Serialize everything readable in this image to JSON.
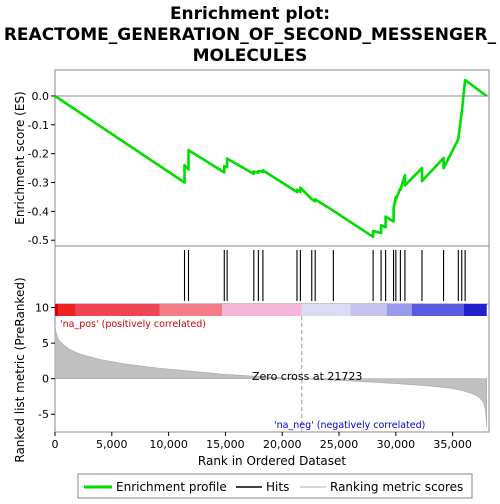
{
  "chart_data": {
    "type": "line",
    "title_lines": [
      "Enrichment plot:",
      "REACTOME_GENERATION_OF_SECOND_MESSENGER_",
      "MOLECULES"
    ],
    "x_axis": {
      "label": "Rank in Ordered Dataset",
      "range": [
        0,
        38200
      ],
      "ticks": [
        0,
        5000,
        10000,
        15000,
        20000,
        25000,
        30000,
        35000
      ],
      "tick_labels": [
        "0",
        "5,000",
        "10,000",
        "15,000",
        "20,000",
        "25,000",
        "30,000",
        "35,000"
      ]
    },
    "es_panel": {
      "ylabel": "Enrichment score (ES)",
      "ylim": [
        -0.52,
        0.09
      ],
      "ticks": [
        0.0,
        -0.1,
        -0.2,
        -0.3,
        -0.4,
        -0.5
      ],
      "tick_labels": [
        "0.0",
        "-0.1",
        "-0.2",
        "-0.3",
        "-0.4",
        "-0.5"
      ],
      "series": [
        {
          "name": "Enrichment profile",
          "color": "#00dd00",
          "x": [
            0,
            11400,
            11400,
            11750,
            11750,
            14900,
            14900,
            15150,
            15150,
            17500,
            17500,
            17900,
            17900,
            18300,
            18300,
            21300,
            21300,
            21600,
            21600,
            22600,
            22600,
            22900,
            22900,
            24500,
            24500,
            28000,
            28000,
            28700,
            28700,
            29100,
            29100,
            29800,
            29800,
            30000,
            30000,
            30400,
            30400,
            30800,
            30800,
            32300,
            32300,
            34200,
            34200,
            35500,
            35500,
            35800,
            35800,
            36100,
            36100,
            38000
          ],
          "y": [
            0.0,
            -0.3,
            -0.24,
            -0.255,
            -0.188,
            -0.265,
            -0.243,
            -0.247,
            -0.217,
            -0.27,
            -0.262,
            -0.266,
            -0.26,
            -0.263,
            -0.258,
            -0.333,
            -0.325,
            -0.333,
            -0.318,
            -0.358,
            -0.358,
            -0.365,
            -0.358,
            -0.398,
            -0.398,
            -0.488,
            -0.468,
            -0.475,
            -0.448,
            -0.455,
            -0.418,
            -0.435,
            -0.39,
            -0.35,
            -0.36,
            -0.32,
            -0.325,
            -0.275,
            -0.31,
            -0.25,
            -0.295,
            -0.215,
            -0.25,
            -0.15,
            -0.15,
            -0.055,
            -0.06,
            0.055,
            0.055,
            0.0
          ]
        }
      ]
    },
    "hits": {
      "name": "Hits",
      "x": [
        11400,
        11750,
        14900,
        15150,
        17500,
        17900,
        18300,
        21300,
        21600,
        22600,
        22900,
        24500,
        28000,
        28700,
        29100,
        29800,
        30000,
        30400,
        30800,
        32300,
        34200,
        35500,
        35800,
        36100
      ]
    },
    "rank_metric_panel": {
      "ylabel": "Ranked list metric (PreRanked)",
      "ylim": [
        -7.5,
        10.5
      ],
      "ticks": [
        10,
        5,
        0,
        -5
      ],
      "tick_labels": [
        "10",
        "5",
        "0",
        "-5"
      ],
      "series_name": "Ranking metric scores",
      "x": [
        0,
        100,
        300,
        700,
        1200,
        2000,
        3000,
        4000,
        5000,
        6000,
        7000,
        8000,
        9000,
        10000,
        11000,
        12000,
        13000,
        14000,
        15000,
        16000,
        17000,
        18000,
        19000,
        20000,
        21000,
        21723,
        23000,
        24000,
        25000,
        26000,
        27000,
        28000,
        29000,
        30000,
        31000,
        32000,
        33000,
        34000,
        35000,
        35500,
        36000,
        36500,
        37000,
        37400,
        37700,
        37900,
        38000
      ],
      "y": [
        7.5,
        6.5,
        5.5,
        4.8,
        4.2,
        3.6,
        3.1,
        2.7,
        2.4,
        2.1,
        1.9,
        1.7,
        1.5,
        1.35,
        1.2,
        1.05,
        0.9,
        0.75,
        0.6,
        0.5,
        0.4,
        0.3,
        0.2,
        0.12,
        0.05,
        0.0,
        -0.1,
        -0.18,
        -0.25,
        -0.33,
        -0.42,
        -0.5,
        -0.6,
        -0.7,
        -0.8,
        -0.92,
        -1.05,
        -1.2,
        -1.4,
        -1.55,
        -1.75,
        -2.0,
        -2.3,
        -2.7,
        -3.3,
        -4.5,
        -6.8
      ]
    },
    "zero_cross": {
      "x": 21723,
      "label": "Zero cross at 21723"
    },
    "annotations": {
      "positive": "'na_pos' (positively correlated)",
      "negative": "'na_neg' (negatively correlated)",
      "positive_color": "#cc0000",
      "negative_color": "#0000cc"
    },
    "color_bar": {
      "segments": [
        {
          "x0": 0,
          "x1": 300,
          "color": "#dd0000"
        },
        {
          "x0": 300,
          "x1": 1800,
          "color": "#ee2222"
        },
        {
          "x0": 1800,
          "x1": 9200,
          "color": "#ee4455"
        },
        {
          "x0": 9200,
          "x1": 14700,
          "color": "#f47c86"
        },
        {
          "x0": 14700,
          "x1": 21700,
          "color": "#f6b6d8"
        },
        {
          "x0": 21700,
          "x1": 26000,
          "color": "#dcdcf2"
        },
        {
          "x0": 26000,
          "x1": 29200,
          "color": "#c4c4ee"
        },
        {
          "x0": 29200,
          "x1": 31400,
          "color": "#9a9aee"
        },
        {
          "x0": 31400,
          "x1": 36000,
          "color": "#5a5ae0"
        },
        {
          "x0": 36000,
          "x1": 38000,
          "color": "#2020cc"
        }
      ]
    },
    "legend": [
      "Enrichment profile",
      "Hits",
      "Ranking metric scores"
    ]
  }
}
